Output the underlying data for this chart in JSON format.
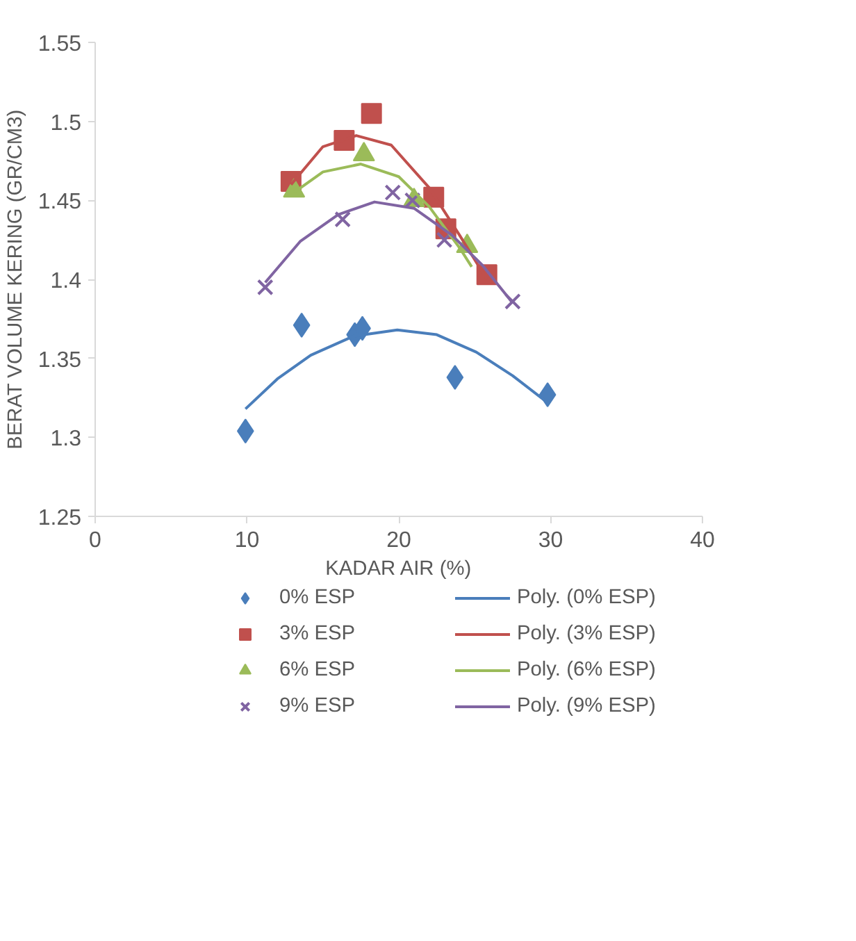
{
  "chart_data": {
    "type": "scatter",
    "xlabel": "KADAR AIR (%)",
    "ylabel": "BERAT VOLUME KERING (GR/CM3)",
    "xlim": [
      0,
      40
    ],
    "xticks": [
      0,
      10,
      20,
      30,
      40
    ],
    "ylim": [
      1.25,
      1.55
    ],
    "yticks": [
      {
        "value": 1.25,
        "label": "1.25"
      },
      {
        "value": 1.3,
        "label": "1.3"
      },
      {
        "value": 1.35,
        "label": "1.35"
      },
      {
        "value": 1.4,
        "label": "1.4"
      },
      {
        "value": 1.45,
        "label": "1.45"
      },
      {
        "value": 1.5,
        "label": "1.5"
      },
      {
        "value": 1.55,
        "label": "1.55"
      }
    ],
    "grid": false,
    "legend": "bottom",
    "series": [
      {
        "name": "0% ESP",
        "color": "#4a7ebb",
        "marker": "diamond",
        "x": [
          9.9,
          13.6,
          17.1,
          17.6,
          23.7,
          29.8
        ],
        "values": [
          1.304,
          1.371,
          1.365,
          1.369,
          1.338,
          1.327
        ]
      },
      {
        "name": "3% ESP",
        "color": "#c0504d",
        "marker": "square",
        "x": [
          12.9,
          16.4,
          18.2,
          22.3,
          23.1,
          25.8
        ],
        "values": [
          1.462,
          1.488,
          1.505,
          1.452,
          1.432,
          1.403
        ]
      },
      {
        "name": "6% ESP",
        "color": "#9bbb59",
        "marker": "triangle",
        "x": [
          13.1,
          17.7,
          21.0,
          24.5
        ],
        "values": [
          1.456,
          1.479,
          1.45,
          1.421
        ]
      },
      {
        "name": "9% ESP",
        "color": "#8064a2",
        "marker": "cross",
        "x": [
          11.2,
          16.3,
          19.6,
          20.9,
          23.0,
          27.5
        ],
        "values": [
          1.395,
          1.438,
          1.455,
          1.45,
          1.425,
          1.386
        ]
      },
      {
        "name": "Poly. (0% ESP)",
        "type": "line",
        "color": "#4a7ebb",
        "x": [
          9.9,
          12,
          14.2,
          17,
          19.9,
          22.5,
          25.1,
          27.5,
          29.8
        ],
        "values": [
          1.318,
          1.337,
          1.352,
          1.364,
          1.368,
          1.365,
          1.354,
          1.339,
          1.322
        ]
      },
      {
        "name": "Poly. (3% ESP)",
        "type": "line",
        "color": "#c0504d",
        "x": [
          12.9,
          15,
          17.2,
          19.5,
          22,
          24,
          25.8
        ],
        "values": [
          1.46,
          1.484,
          1.491,
          1.485,
          1.458,
          1.428,
          1.4
        ]
      },
      {
        "name": "Poly. (6% ESP)",
        "type": "line",
        "color": "#9bbb59",
        "x": [
          13.1,
          15,
          17.5,
          20,
          22,
          24,
          24.8
        ],
        "values": [
          1.455,
          1.468,
          1.473,
          1.465,
          1.446,
          1.42,
          1.408
        ]
      },
      {
        "name": "Poly. (9% ESP)",
        "type": "line",
        "color": "#8064a2",
        "x": [
          11.2,
          13.5,
          16,
          18.4,
          21,
          23.5,
          25.5,
          27.5
        ],
        "values": [
          1.398,
          1.424,
          1.441,
          1.449,
          1.445,
          1.428,
          1.409,
          1.385
        ]
      }
    ]
  }
}
